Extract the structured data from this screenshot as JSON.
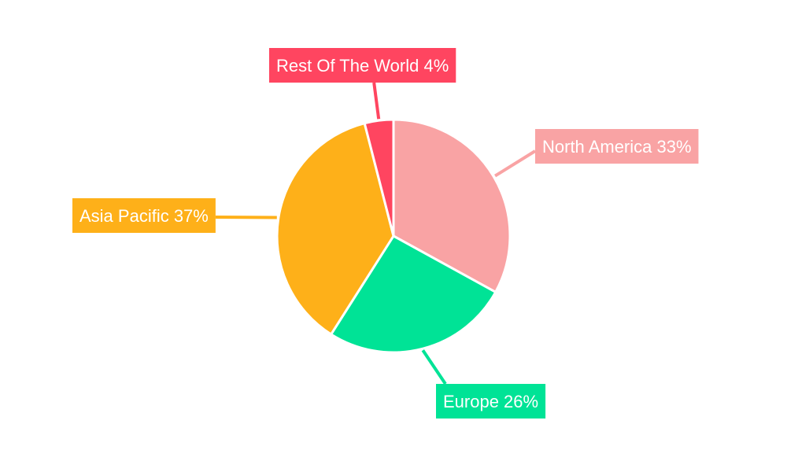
{
  "chart_data": {
    "type": "pie",
    "title": "",
    "slices": [
      {
        "name": "North America",
        "value": 33,
        "label": "North America 33%",
        "color": "#f9a3a4"
      },
      {
        "name": "Europe",
        "value": 26,
        "label": "Europe 26%",
        "color": "#00e396"
      },
      {
        "name": "Asia Pacific",
        "value": 37,
        "label": "Asia Pacific 37%",
        "color": "#feb019"
      },
      {
        "name": "Rest Of The World",
        "value": 4,
        "label": "Rest Of The World 4%",
        "color": "#ff4560"
      }
    ],
    "start_angle": "12 o'clock",
    "direction": "clockwise",
    "legend": "none",
    "labels": "outside-with-leader-lines"
  }
}
